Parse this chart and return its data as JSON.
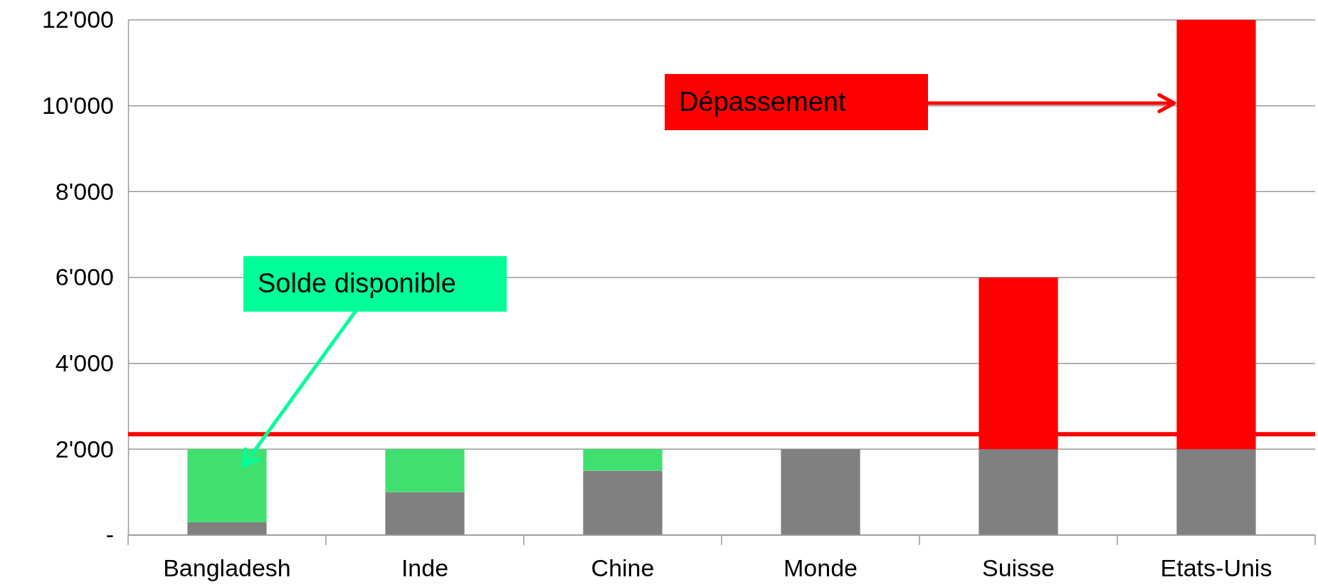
{
  "chart_data": {
    "type": "bar",
    "stacked": true,
    "categories": [
      "Bangladesh",
      "Inde",
      "Chine",
      "Monde",
      "Suisse",
      "Etats-Unis"
    ],
    "series": [
      {
        "color": "#808080",
        "values": [
          300,
          1000,
          1500,
          2000,
          2000,
          2000
        ]
      },
      {
        "color": "#40e070",
        "values": [
          1700,
          1000,
          500,
          null,
          null,
          null
        ]
      },
      {
        "color": "#ff0000",
        "values": [
          null,
          null,
          null,
          null,
          4000,
          10000
        ]
      }
    ],
    "ylim": [
      0,
      12000
    ],
    "yticks": [
      {
        "value": 0,
        "label": "-"
      },
      {
        "value": 2000,
        "label": "2'000"
      },
      {
        "value": 4000,
        "label": "4'000"
      },
      {
        "value": 6000,
        "label": "6'000"
      },
      {
        "value": 8000,
        "label": "8'000"
      },
      {
        "value": 10000,
        "label": "10'000"
      },
      {
        "value": 12000,
        "label": "12'000"
      }
    ],
    "grid": "y",
    "ref_lines": [
      {
        "axis": "y",
        "value": 2350,
        "color": "#ff0000"
      }
    ],
    "annotations": [
      "Solde disponible",
      "Dépassement"
    ]
  }
}
